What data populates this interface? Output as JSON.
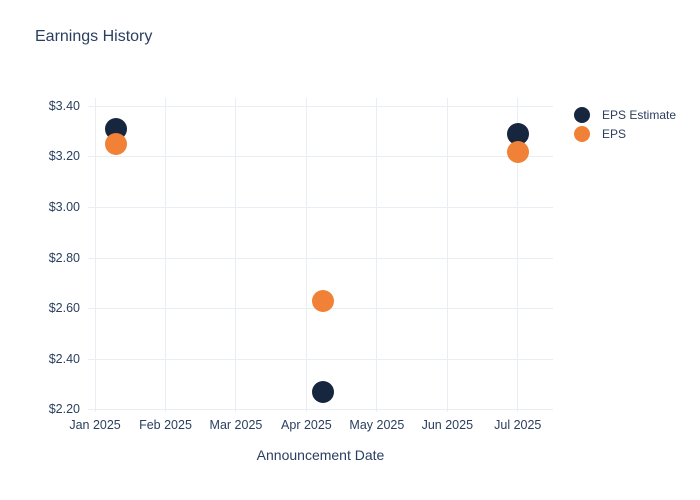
{
  "page": {
    "background": "#ffffff"
  },
  "colors": {
    "text": "#2a3f5f",
    "grid": "#e9edf4"
  },
  "chart_data": {
    "type": "scatter",
    "title": "Earnings History",
    "xlabel": "Announcement Date",
    "ylabel": "",
    "grid": true,
    "legend_position": "right",
    "x_units": "months offset from Jan 2025 tick",
    "xlim": [
      -0.1,
      6.5
    ],
    "ylim": [
      2.192,
      3.432
    ],
    "x_ticks": [
      {
        "pos": 0,
        "label": "Jan 2025"
      },
      {
        "pos": 1,
        "label": "Feb 2025"
      },
      {
        "pos": 2,
        "label": "Mar 2025"
      },
      {
        "pos": 3,
        "label": "Apr 2025"
      },
      {
        "pos": 4,
        "label": "May 2025"
      },
      {
        "pos": 5,
        "label": "Jun 2025"
      },
      {
        "pos": 6,
        "label": "Jul 2025"
      }
    ],
    "y_ticks": [
      {
        "value": 3.4,
        "label": "$3.40"
      },
      {
        "value": 3.2,
        "label": "$3.20"
      },
      {
        "value": 3.0,
        "label": "$3.00"
      },
      {
        "value": 2.8,
        "label": "$2.80"
      },
      {
        "value": 2.6,
        "label": "$2.60"
      },
      {
        "value": 2.4,
        "label": "$2.40"
      },
      {
        "value": 2.2,
        "label": "$2.20"
      }
    ],
    "series": [
      {
        "name": "EPS Estimate",
        "color": "#17263f",
        "points": [
          {
            "x": 0.3,
            "y": 3.31
          },
          {
            "x": 3.24,
            "y": 2.27
          },
          {
            "x": 6.0,
            "y": 3.29
          }
        ]
      },
      {
        "name": "EPS",
        "color": "#f08137",
        "points": [
          {
            "x": 0.3,
            "y": 3.25
          },
          {
            "x": 3.24,
            "y": 2.63
          },
          {
            "x": 6.0,
            "y": 3.22
          }
        ]
      }
    ]
  }
}
